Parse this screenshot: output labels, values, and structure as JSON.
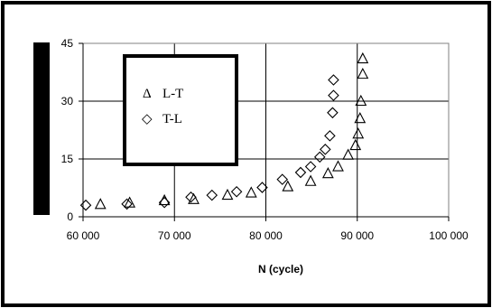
{
  "chart_data": {
    "type": "scatter",
    "title": "",
    "xlabel": "N (cycle)",
    "ylabel": "",
    "xlim": [
      60000,
      100000
    ],
    "ylim": [
      0,
      45
    ],
    "xticks": [
      "60 000",
      "70 000",
      "80 000",
      "90 000",
      "100 000"
    ],
    "yticks": [
      "0",
      "15",
      "30",
      "45"
    ],
    "grid": true,
    "legend_position": "top-left",
    "series": [
      {
        "name": "L-T",
        "marker": "triangle",
        "symbol": "Δ",
        "points": [
          [
            61900,
            3.2
          ],
          [
            65100,
            3.6
          ],
          [
            68900,
            4.2
          ],
          [
            72100,
            4.5
          ],
          [
            75800,
            5.6
          ],
          [
            78400,
            6.2
          ],
          [
            82400,
            7.8
          ],
          [
            84900,
            9.2
          ],
          [
            86800,
            11.2
          ],
          [
            87900,
            13.0
          ],
          [
            89000,
            16.0
          ],
          [
            89800,
            18.5
          ],
          [
            90100,
            21.5
          ],
          [
            90300,
            25.5
          ],
          [
            90400,
            30.0
          ],
          [
            90600,
            37.0
          ],
          [
            90600,
            41.0
          ]
        ]
      },
      {
        "name": "T-L",
        "marker": "diamond",
        "symbol": "◇",
        "points": [
          [
            60300,
            3.0
          ],
          [
            64800,
            3.3
          ],
          [
            68900,
            3.7
          ],
          [
            71800,
            5.1
          ],
          [
            74100,
            5.6
          ],
          [
            76800,
            6.5
          ],
          [
            79600,
            7.6
          ],
          [
            81800,
            9.7
          ],
          [
            83800,
            11.5
          ],
          [
            84900,
            13.0
          ],
          [
            85900,
            15.5
          ],
          [
            86500,
            17.5
          ],
          [
            87000,
            21.0
          ],
          [
            87300,
            27.0
          ],
          [
            87400,
            31.5
          ],
          [
            87400,
            35.5
          ]
        ]
      }
    ]
  },
  "colors": {
    "axis": "#000000",
    "grid": "#000000",
    "marker": "#000000",
    "frame": "#000000"
  }
}
